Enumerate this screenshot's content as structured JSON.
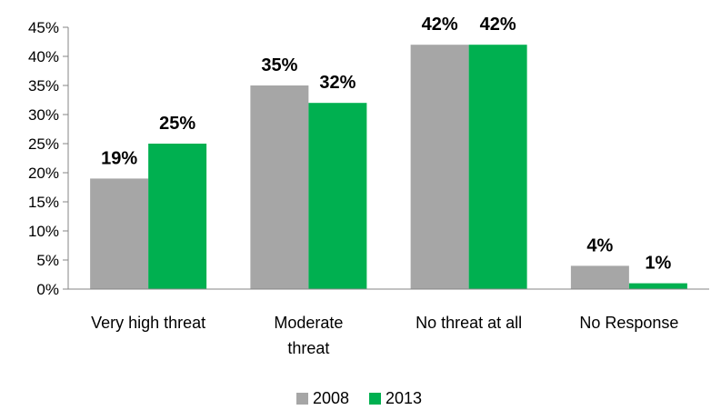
{
  "chart_data": {
    "type": "bar",
    "categories": [
      [
        "Very high threat"
      ],
      [
        "Moderate",
        "threat"
      ],
      [
        "No threat at all"
      ],
      [
        "No Response"
      ]
    ],
    "series": [
      {
        "name": "2008",
        "color": "#a6a6a6",
        "values": [
          19,
          35,
          42,
          4
        ]
      },
      {
        "name": "2013",
        "color": "#00b050",
        "values": [
          25,
          32,
          42,
          1
        ]
      }
    ],
    "yticks": [
      0,
      5,
      10,
      15,
      20,
      25,
      30,
      35,
      40,
      45
    ],
    "ylim": [
      0,
      45
    ],
    "value_suffix": "%",
    "grid": false,
    "legend": "bottom-center"
  }
}
